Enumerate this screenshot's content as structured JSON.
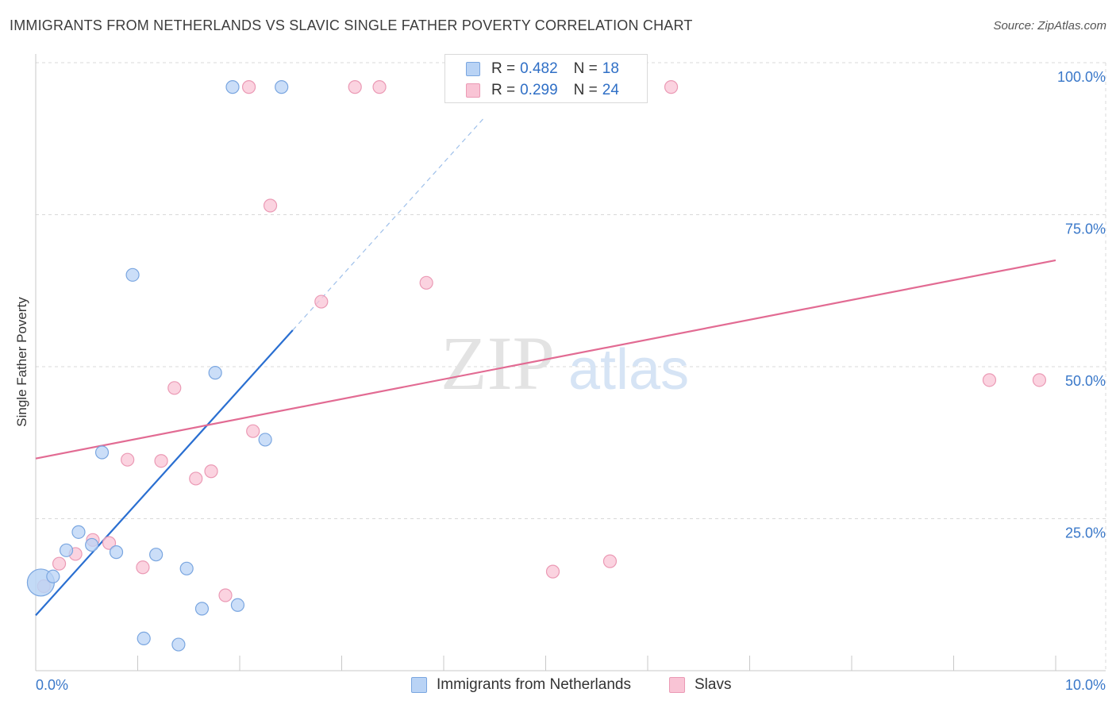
{
  "title": "IMMIGRANTS FROM NETHERLANDS VS SLAVIC SINGLE FATHER POVERTY CORRELATION CHART",
  "source": "Source: ZipAtlas.com",
  "watermark": {
    "zip": "ZIP",
    "atlas": "atlas"
  },
  "legend": {
    "r_label": "R =",
    "n_label": "N =",
    "entries": [
      {
        "r": "0.482",
        "n": "18"
      },
      {
        "r": "0.299",
        "n": "24"
      }
    ]
  },
  "colors": {
    "blue_fill": "#b9d3f5",
    "blue_stroke": "#7aa6e0",
    "blue_line": "#2a6fd1",
    "pink_fill": "#f9c4d5",
    "pink_stroke": "#eb9ab5",
    "pink_line": "#e26b93",
    "grid": "#d8d8d8",
    "axis_text": "#3a78c9"
  },
  "chart_data": {
    "type": "scatter",
    "title": "IMMIGRANTS FROM NETHERLANDS VS SLAVIC SINGLE FATHER POVERTY CORRELATION CHART",
    "xlabel": "",
    "ylabel": "Single Father Poverty",
    "xlim": [
      0,
      10
    ],
    "ylim": [
      0,
      100
    ],
    "x_tick_labels": [
      "0.0%",
      "10.0%"
    ],
    "y_tick_labels": [
      "25.0%",
      "50.0%",
      "75.0%",
      "100.0%"
    ],
    "y_ticks": [
      25,
      50,
      75,
      100
    ],
    "grid": true,
    "series": [
      {
        "name": "Immigrants from Netherlands",
        "r": 0.482,
        "n": 18,
        "points": [
          {
            "x": 0.05,
            "y": 14.5,
            "big": true
          },
          {
            "x": 0.17,
            "y": 15.5
          },
          {
            "x": 0.3,
            "y": 19.8
          },
          {
            "x": 0.42,
            "y": 22.8
          },
          {
            "x": 0.55,
            "y": 20.7
          },
          {
            "x": 0.65,
            "y": 35.9
          },
          {
            "x": 0.79,
            "y": 19.5
          },
          {
            "x": 0.95,
            "y": 65.1
          },
          {
            "x": 1.06,
            "y": 5.3
          },
          {
            "x": 1.18,
            "y": 19.1
          },
          {
            "x": 1.4,
            "y": 4.3
          },
          {
            "x": 1.48,
            "y": 16.8
          },
          {
            "x": 1.63,
            "y": 10.2
          },
          {
            "x": 1.76,
            "y": 49.0
          },
          {
            "x": 1.93,
            "y": 96.0
          },
          {
            "x": 1.98,
            "y": 10.8
          },
          {
            "x": 2.25,
            "y": 38.0
          },
          {
            "x": 2.41,
            "y": 96.0
          }
        ],
        "trend": {
          "x0": 0.0,
          "y0": 9.1,
          "x1": 2.52,
          "y1": 56.0,
          "dash_x1": 4.4,
          "dash_y1": 91.0
        }
      },
      {
        "name": "Slavs",
        "r": 0.299,
        "n": 24,
        "points": [
          {
            "x": 0.08,
            "y": 13.9
          },
          {
            "x": 0.23,
            "y": 17.6
          },
          {
            "x": 0.39,
            "y": 19.2
          },
          {
            "x": 0.56,
            "y": 21.5
          },
          {
            "x": 0.72,
            "y": 21.0
          },
          {
            "x": 0.9,
            "y": 34.7
          },
          {
            "x": 1.05,
            "y": 17.0
          },
          {
            "x": 1.23,
            "y": 34.5
          },
          {
            "x": 1.36,
            "y": 46.5
          },
          {
            "x": 1.57,
            "y": 31.6
          },
          {
            "x": 1.72,
            "y": 32.8
          },
          {
            "x": 1.86,
            "y": 12.4
          },
          {
            "x": 2.09,
            "y": 96.0
          },
          {
            "x": 2.13,
            "y": 39.4
          },
          {
            "x": 2.3,
            "y": 76.5
          },
          {
            "x": 2.8,
            "y": 60.7
          },
          {
            "x": 3.13,
            "y": 96.0
          },
          {
            "x": 3.37,
            "y": 96.0
          },
          {
            "x": 3.83,
            "y": 63.8
          },
          {
            "x": 5.07,
            "y": 16.3
          },
          {
            "x": 5.63,
            "y": 18.0
          },
          {
            "x": 6.23,
            "y": 96.0
          },
          {
            "x": 9.35,
            "y": 47.8
          },
          {
            "x": 9.84,
            "y": 47.8
          }
        ],
        "trend": {
          "x0": 0.0,
          "y0": 34.9,
          "x1": 10.0,
          "y1": 67.5
        }
      }
    ]
  }
}
